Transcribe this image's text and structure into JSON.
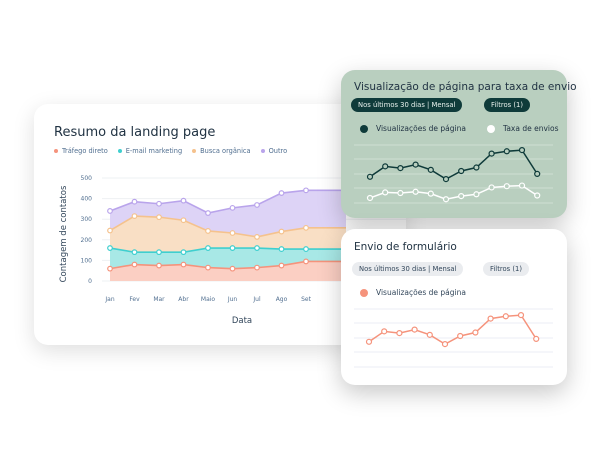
{
  "main_card": {
    "title": "Resumo da landing page",
    "legend": [
      {
        "label": "Tráfego direto",
        "color": "#f5937c"
      },
      {
        "label": "E-mail marketing",
        "color": "#3fcfcf"
      },
      {
        "label": "Busca orgânica",
        "color": "#f5c28d"
      },
      {
        "label": "Outro",
        "color": "#b9a4eb"
      }
    ],
    "ylabel": "Contagem de contatos",
    "xlabel": "Data"
  },
  "green_card": {
    "title": "Visualização de página para taxa de envio",
    "period_pill": "Nos últimos 30 dias | Mensal",
    "filter_pill": "Filtros (1)",
    "legend": [
      {
        "label": "Visualizações de página",
        "color": "#0f3b3a"
      },
      {
        "label": "Taxa de envios",
        "color": "#ffffff"
      }
    ]
  },
  "white_card": {
    "title": "Envio de formulário",
    "period_pill": "Nos últimos 30 dias | Mensal",
    "filter_pill": "Filtros (1)",
    "legend": [
      {
        "label": "Visualizações de página",
        "color": "#f5937c"
      }
    ]
  },
  "chart_data": [
    {
      "type": "area",
      "title": "Resumo da landing page",
      "xlabel": "Data",
      "ylabel": "Contagem de contatos",
      "categories": [
        "Jan",
        "Fev",
        "Mar",
        "Abr",
        "Maio",
        "Jun",
        "Jul",
        "Ago",
        "Set"
      ],
      "yticks": [
        0,
        100,
        200,
        300,
        400,
        500
      ],
      "ylim": [
        0,
        500
      ],
      "grid": true,
      "legend_position": "top",
      "series": [
        {
          "name": "Tráfego direto",
          "color": "#f5937c",
          "values": [
            60,
            80,
            75,
            80,
            65,
            60,
            65,
            75,
            95
          ]
        },
        {
          "name": "E-mail marketing",
          "color": "#3fcfcf",
          "values": [
            160,
            140,
            140,
            140,
            160,
            160,
            160,
            155,
            155
          ]
        },
        {
          "name": "Busca orgânica",
          "color": "#f5c28d",
          "values": [
            245,
            315,
            310,
            295,
            243,
            233,
            214,
            240,
            258
          ]
        },
        {
          "name": "Outro",
          "color": "#b9a4eb",
          "values": [
            340,
            385,
            375,
            390,
            330,
            355,
            369,
            427,
            440
          ]
        }
      ]
    },
    {
      "type": "line",
      "title": "Visualização de página para taxa de envio",
      "x": [
        1,
        2,
        3,
        4,
        5,
        6,
        7,
        8,
        9,
        10,
        11,
        12
      ],
      "grid": true,
      "series": [
        {
          "name": "Visualizações de página",
          "color": "#0f3b3a",
          "values": [
            40,
            58,
            55,
            61,
            52,
            36,
            50,
            56,
            80,
            84,
            86,
            45
          ]
        },
        {
          "name": "Taxa de envios",
          "color": "#ffffff",
          "values": [
            21,
            30,
            29,
            31,
            28,
            19,
            24,
            27,
            38,
            40,
            41,
            25
          ]
        }
      ]
    },
    {
      "type": "line",
      "title": "Envio de formulário",
      "x": [
        1,
        2,
        3,
        4,
        5,
        6,
        7,
        8,
        9,
        10,
        11,
        12
      ],
      "grid": true,
      "series": [
        {
          "name": "Visualizações de página",
          "color": "#f5937c",
          "values": [
            40,
            58,
            55,
            61,
            52,
            36,
            50,
            56,
            80,
            84,
            86,
            45
          ]
        }
      ]
    }
  ]
}
